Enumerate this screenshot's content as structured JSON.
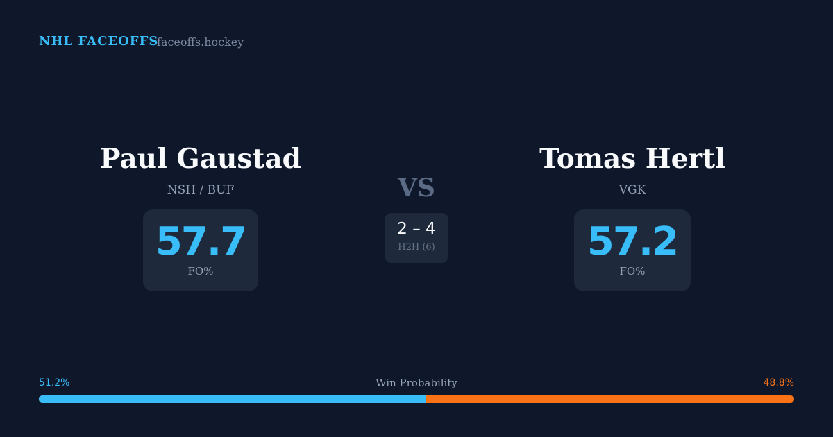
{
  "header": {
    "brand": "NHL FACEOFFS",
    "site": "faceoffs.hockey"
  },
  "player_left": {
    "name": "Paul Gaustad",
    "team": "NSH / BUF",
    "fo_pct": "57.7",
    "fo_label": "FO%"
  },
  "player_right": {
    "name": "Tomas Hertl",
    "team": "VGK",
    "fo_pct": "57.2",
    "fo_label": "FO%"
  },
  "versus": {
    "label": "VS",
    "h2h_score": "2 – 4",
    "h2h_label": "H2H (6)"
  },
  "win_probability": {
    "label": "Win Probability",
    "left_pct": "51.2%",
    "right_pct": "48.8%",
    "left_value": 51.2,
    "colors": {
      "left": "#38bdf8",
      "right": "#f97316"
    }
  }
}
